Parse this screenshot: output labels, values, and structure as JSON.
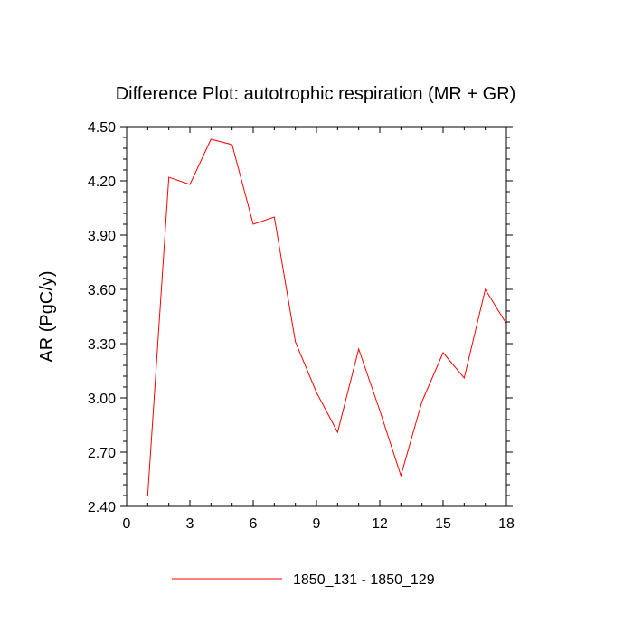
{
  "chart_data": {
    "type": "line",
    "title": "Difference Plot: autotrophic respiration (MR + GR)",
    "xlabel": "",
    "ylabel": "AR  (PgC/y)",
    "xlim": [
      0,
      18
    ],
    "ylim": [
      2.4,
      4.5
    ],
    "xticks": [
      0,
      3,
      6,
      9,
      12,
      15,
      18
    ],
    "xtick_labels": [
      "0",
      "3",
      "6",
      "9",
      "12",
      "15",
      "18"
    ],
    "yticks": [
      2.4,
      2.7,
      3.0,
      3.3,
      3.6,
      3.9,
      4.2,
      4.5
    ],
    "ytick_labels": [
      "2.40",
      "2.70",
      "3.00",
      "3.30",
      "3.60",
      "3.90",
      "4.20",
      "4.50"
    ],
    "grid": false,
    "legend_position": "bottom",
    "series": [
      {
        "name": "1850_131 - 1850_129",
        "color": "#ff0000",
        "x": [
          1,
          2,
          3,
          4,
          5,
          6,
          7,
          8,
          9,
          10,
          11,
          12,
          13,
          14,
          15,
          16,
          17,
          18
        ],
        "values": [
          2.46,
          4.22,
          4.18,
          4.43,
          4.4,
          3.96,
          4.0,
          3.31,
          3.03,
          2.81,
          3.27,
          2.93,
          2.57,
          2.98,
          3.25,
          3.11,
          3.6,
          3.41
        ]
      }
    ]
  }
}
